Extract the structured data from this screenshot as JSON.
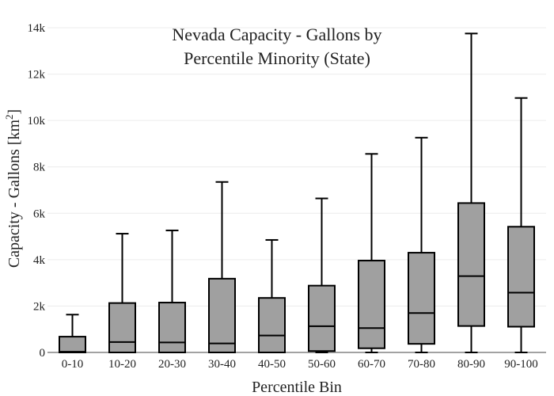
{
  "chart_data": {
    "type": "box",
    "title_lines": [
      "Nevada Capacity - Gallons by",
      "Percentile Minority (State)"
    ],
    "xlabel": "Percentile Bin",
    "ylabel_main": "Capacity - Gallons  [km",
    "ylabel_sup": "2",
    "ylabel_close": "]",
    "ylim": [
      0,
      14000
    ],
    "yticks": [
      0,
      2000,
      4000,
      6000,
      8000,
      10000,
      12000,
      14000
    ],
    "ytick_labels": [
      "0",
      "2k",
      "4k",
      "6k",
      "8k",
      "10k",
      "12k",
      "14k"
    ],
    "grid": true,
    "categories": [
      "0-10",
      "10-20",
      "20-30",
      "30-40",
      "40-50",
      "50-60",
      "60-70",
      "70-80",
      "80-90",
      "90-100"
    ],
    "series": [
      {
        "values": [
          {
            "min": 0,
            "q1": 0,
            "median": 30,
            "q3": 680,
            "max": 1630
          },
          {
            "min": 0,
            "q1": 0,
            "median": 450,
            "q3": 2130,
            "max": 5120
          },
          {
            "min": 0,
            "q1": 0,
            "median": 430,
            "q3": 2150,
            "max": 5260
          },
          {
            "min": 0,
            "q1": 0,
            "median": 390,
            "q3": 3180,
            "max": 7350
          },
          {
            "min": 0,
            "q1": 0,
            "median": 730,
            "q3": 2350,
            "max": 4850
          },
          {
            "min": 0,
            "q1": 60,
            "median": 1130,
            "q3": 2880,
            "max": 6640
          },
          {
            "min": 0,
            "q1": 180,
            "median": 1050,
            "q3": 3960,
            "max": 8560
          },
          {
            "min": 0,
            "q1": 370,
            "median": 1700,
            "q3": 4300,
            "max": 9260
          },
          {
            "min": 0,
            "q1": 1140,
            "median": 3290,
            "q3": 6440,
            "max": 13750
          },
          {
            "min": 0,
            "q1": 1110,
            "median": 2580,
            "q3": 5420,
            "max": 10970
          }
        ]
      }
    ],
    "colors": {
      "box_fill": "#a0a0a0",
      "outline": "#000000",
      "grid": "#ececec"
    }
  }
}
